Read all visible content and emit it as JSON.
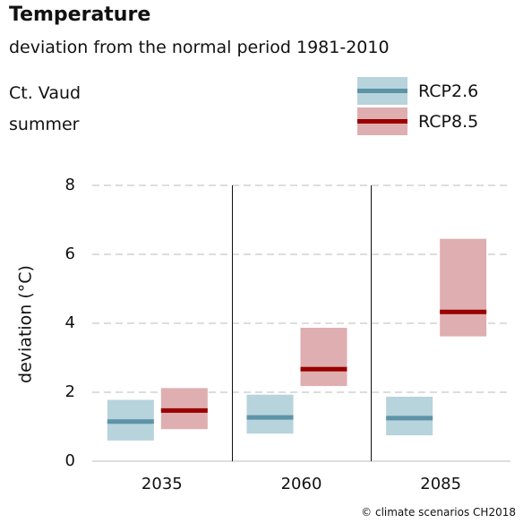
{
  "header": {
    "title": "Temperature",
    "subtitle": "deviation from the normal period 1981-2010",
    "region": "Ct. Vaud",
    "season": "summer"
  },
  "credit": "© climate scenarios CH2018",
  "colors": {
    "rcp26_band": "#b7d3dc",
    "rcp26_line": "#5d93a6",
    "rcp85_band": "#dfaeb0",
    "rcp85_line": "#990000",
    "grid": "#bbbbbb",
    "divider": "#111111"
  },
  "chart_data": {
    "type": "bar",
    "ylabel": "deviation (°C)",
    "xlabel": "",
    "ylim": [
      0,
      8
    ],
    "yticks": [
      0,
      2,
      4,
      6,
      8
    ],
    "grid": true,
    "legend_position": "top-right",
    "categories": [
      "2035",
      "2060",
      "2085"
    ],
    "series": [
      {
        "name": "RCP2.6",
        "low": [
          0.6,
          0.8,
          0.75
        ],
        "median": [
          1.15,
          1.27,
          1.25
        ],
        "high": [
          1.78,
          1.93,
          1.87
        ]
      },
      {
        "name": "RCP8.5",
        "low": [
          0.93,
          2.18,
          3.62
        ],
        "median": [
          1.47,
          2.67,
          4.33
        ],
        "high": [
          2.12,
          3.87,
          6.45
        ]
      }
    ]
  }
}
